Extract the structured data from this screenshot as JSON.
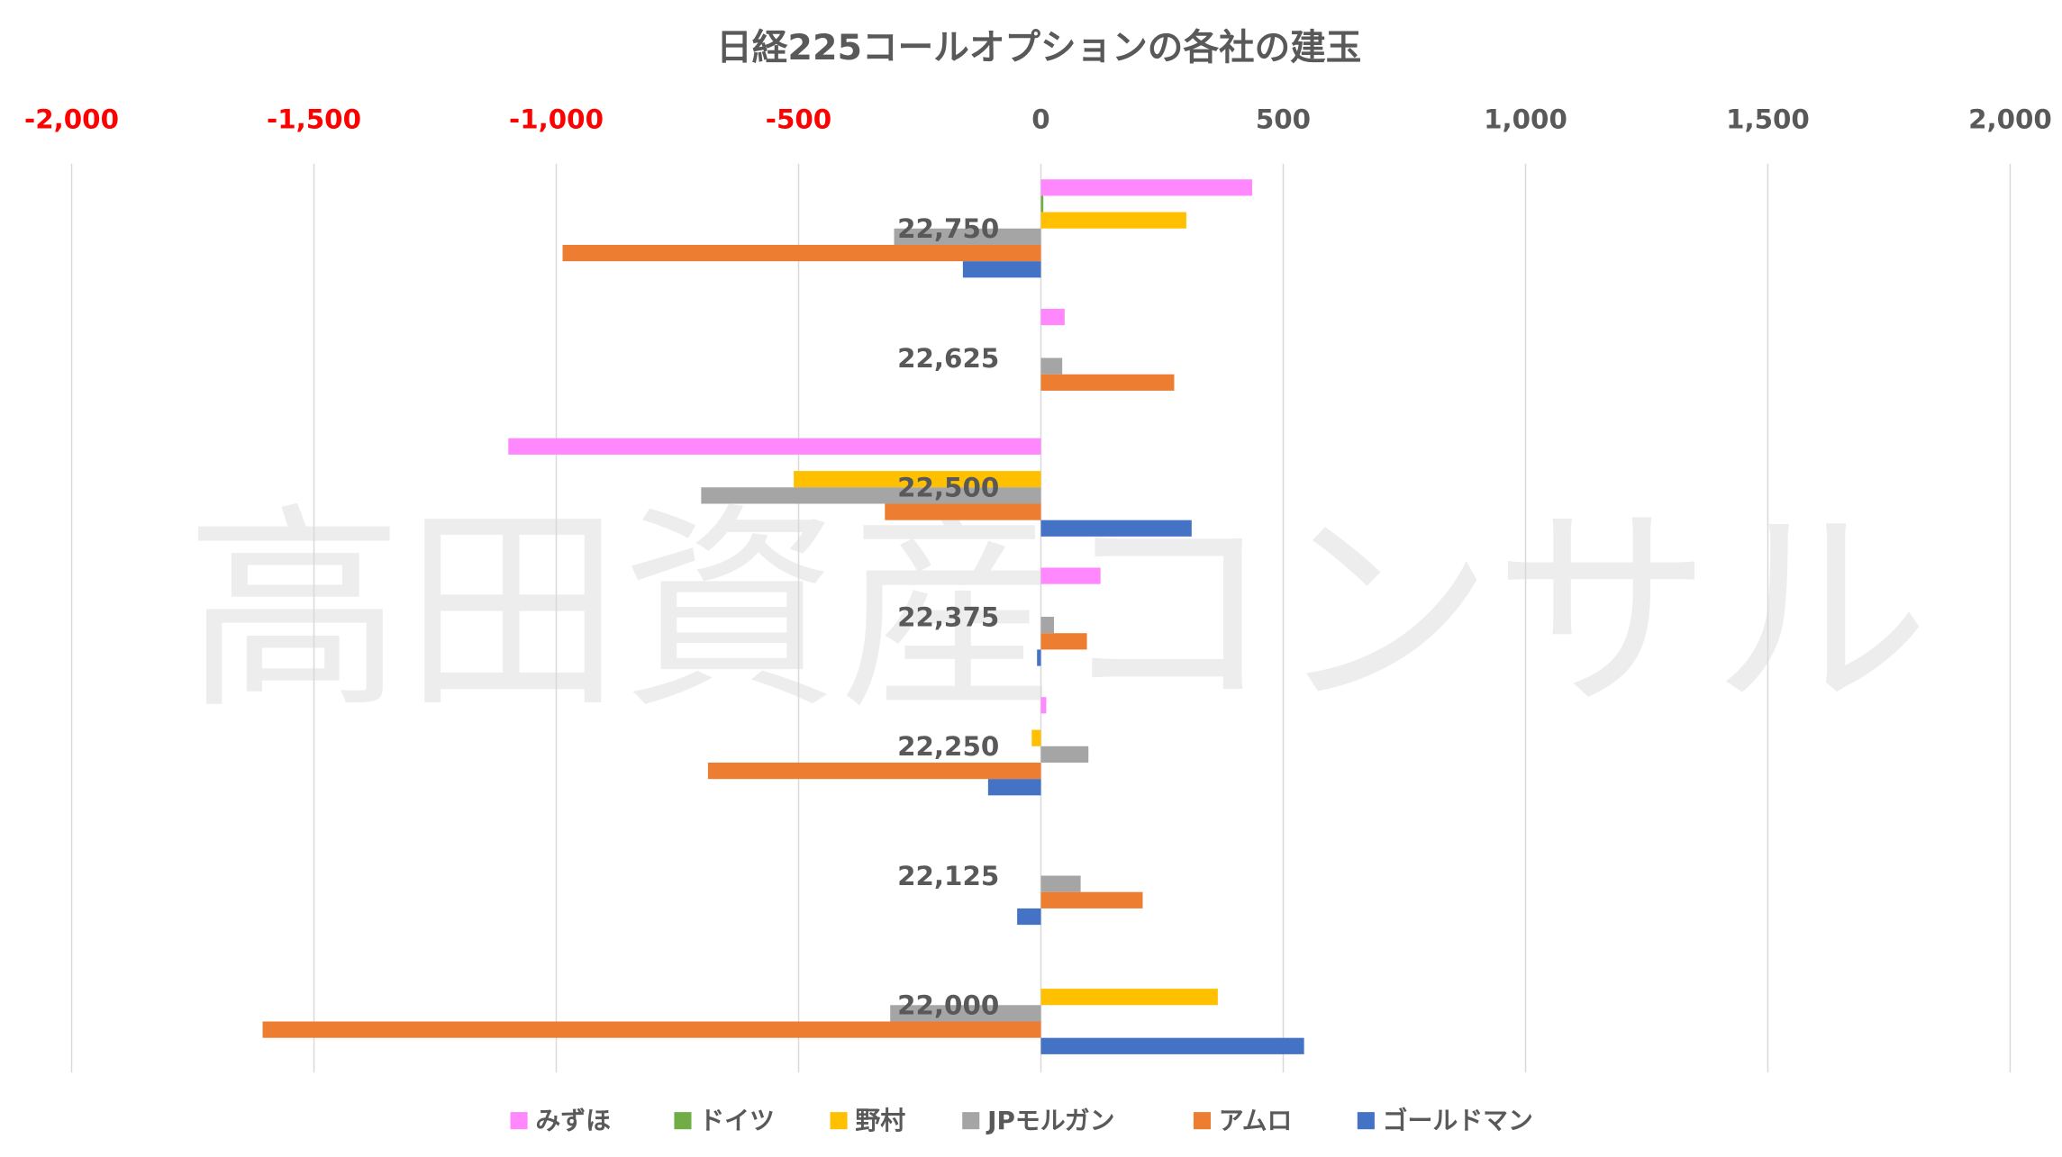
{
  "chart_data": {
    "type": "bar",
    "orientation": "horizontal",
    "title": "日経225コールオプションの各社の建玉",
    "watermark": "高田資産コンサル",
    "xlim": [
      -2000,
      2000
    ],
    "x_ticks": [
      -2000,
      -1500,
      -1000,
      -500,
      0,
      500,
      1000,
      1500,
      2000
    ],
    "x_tick_labels": [
      "-2,000",
      "-1,500",
      "-1,000",
      "-500",
      "0",
      "500",
      "1,000",
      "1,500",
      "2,000"
    ],
    "negative_tick_color": "#FF0000",
    "positive_tick_color": "#595959",
    "grid": true,
    "legend_position": "bottom",
    "categories": [
      "22,750",
      "22,625",
      "22,500",
      "22,375",
      "22,250",
      "22,125",
      "22,000"
    ],
    "series": [
      {
        "name": "みずほ",
        "color": "#FF88FF",
        "values": [
          436,
          49,
          -1099,
          123,
          11,
          0,
          0
        ]
      },
      {
        "name": "ドイツ",
        "color": "#70AD47",
        "values": [
          5,
          0,
          0,
          0,
          0,
          0,
          0
        ]
      },
      {
        "name": "野村",
        "color": "#FFC000",
        "values": [
          300,
          0,
          -510,
          0,
          -19,
          0,
          365
        ]
      },
      {
        "name": "JPモルガン",
        "color": "#A5A5A5",
        "values": [
          -303,
          44,
          -701,
          27,
          98,
          82,
          -311
        ]
      },
      {
        "name": "アムロ",
        "color": "#ED7D31",
        "values": [
          -987,
          275,
          -322,
          95,
          -687,
          210,
          -1606
        ]
      },
      {
        "name": "ゴールドマン",
        "color": "#4472C4",
        "values": [
          -161,
          0,
          311,
          -8,
          -109,
          -49,
          543
        ]
      }
    ]
  }
}
